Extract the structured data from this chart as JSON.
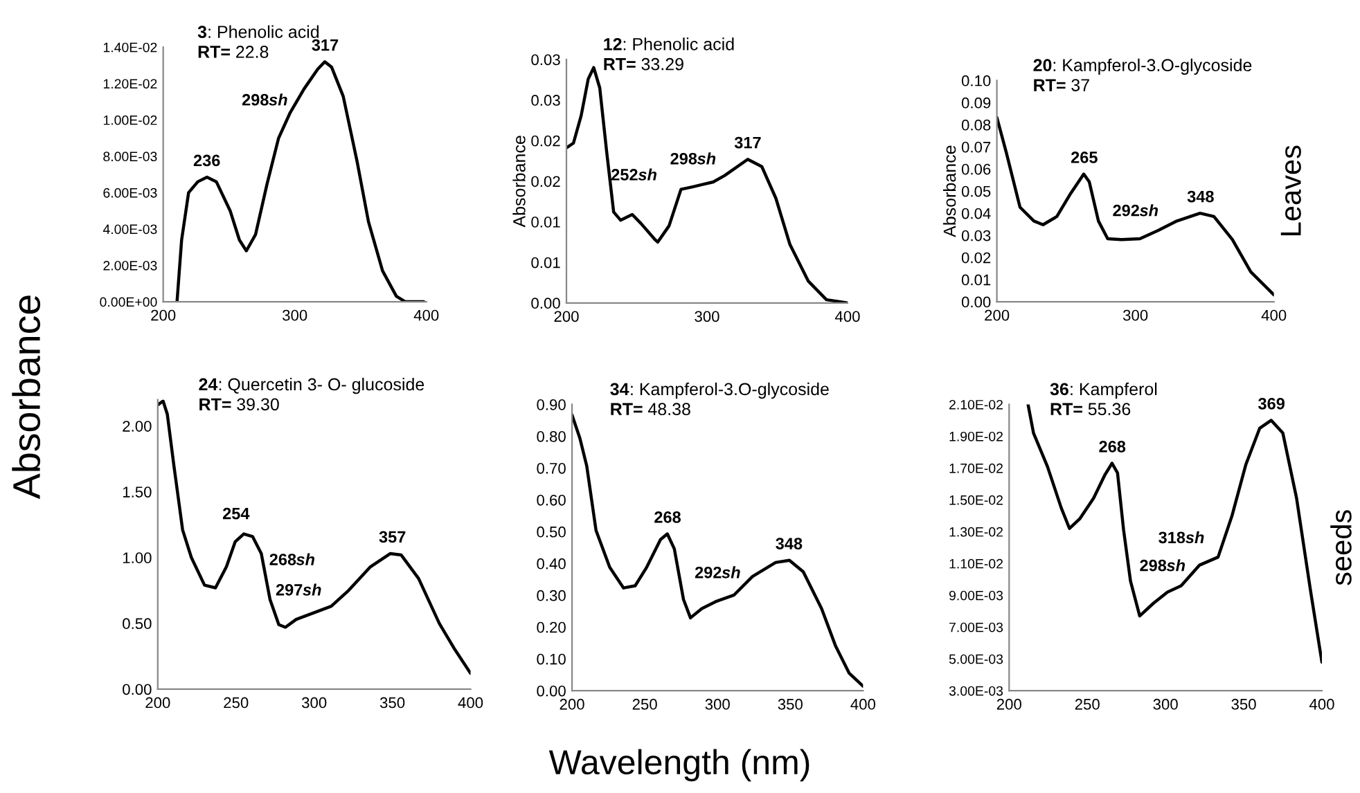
{
  "chart_data": [
    {
      "type": "line",
      "title": "3: Phenolic acid",
      "subtitle": "RT= 22.8",
      "annotations": [
        "Absorbance",
        "Wavelength (nm)",
        {
          "text": "236",
          "x": 233,
          "y": 0.00685
        },
        {
          "text": "298sh",
          "x": 296,
          "y": 0.0104
        },
        {
          "text": "317",
          "x": 323,
          "y": 0.0132
        }
      ],
      "series": [
        {
          "color": "#000000",
          "x": [
            210.5,
            214,
            219.3,
            226.3,
            233.3,
            240.4,
            250.9,
            257.9,
            263.2,
            270.2,
            279,
            287.7,
            296.5,
            307,
            317.5,
            322.8,
            328,
            336.8,
            347.4,
            356,
            366.7,
            377.2,
            384,
            398
          ],
          "values": [
            0,
            0.0034,
            0.006,
            0.0066,
            0.00685,
            0.0066,
            0.005,
            0.0034,
            0.0028,
            0.0037,
            0.0065,
            0.009,
            0.0104,
            0.0117,
            0.0128,
            0.0132,
            0.0129,
            0.0113,
            0.0077,
            0.0044,
            0.0017,
            0.0003,
            0,
            0
          ]
        }
      ],
      "xlim": [
        200,
        400
      ],
      "xticks": [
        200,
        300,
        400
      ],
      "ylim": [
        0,
        0.014
      ],
      "yticks": [
        {
          "value": 0,
          "label": "0.00E+00"
        },
        {
          "value": 0.002,
          "label": "2.00E-03"
        },
        {
          "value": 0.004,
          "label": "4.00E-03"
        },
        {
          "value": 0.006,
          "label": "6.00E-03"
        },
        {
          "value": 0.008,
          "label": "8.00E-03"
        },
        {
          "value": 0.01,
          "label": "1.00E-02"
        },
        {
          "value": 0.012,
          "label": "1.20E-02"
        },
        {
          "value": 0.014,
          "label": "1.40E-02"
        }
      ]
    },
    {
      "type": "line",
      "title": "12: Phenolic acid",
      "subtitle": "RT= 33.29",
      "ylabel": "Absorbance",
      "annotations": [
        {
          "text": "252sh",
          "x": 248,
          "y": 0.0109
        },
        {
          "text": "298sh",
          "x": 290,
          "y": 0.0143
        },
        {
          "text": "317",
          "x": 329,
          "y": 0.0177
        }
      ],
      "series": [
        {
          "color": "#000000",
          "x": [
            200,
            205,
            210.5,
            215.5,
            219.4,
            223.7,
            228.7,
            233.6,
            238.5,
            246.8,
            253,
            263,
            265,
            273,
            281.5,
            289.6,
            304.4,
            312.6,
            329,
            339,
            349,
            359,
            372,
            385,
            400
          ],
          "values": [
            0.0191,
            0.0197,
            0.0231,
            0.0276,
            0.029,
            0.0265,
            0.0185,
            0.0112,
            0.0102,
            0.0109,
            0.0098,
            0.0078,
            0.0075,
            0.0095,
            0.014,
            0.0143,
            0.0149,
            0.0157,
            0.0177,
            0.0168,
            0.0129,
            0.0072,
            0.0027,
            0.0004,
            0
          ]
        }
      ],
      "xlim": [
        200,
        400
      ],
      "xticks": [
        200,
        300,
        400
      ],
      "ylim": [
        0,
        0.03
      ],
      "yticks": [
        {
          "value": 0,
          "label": "0.00"
        },
        {
          "value": 0.005,
          "label": "0.01"
        },
        {
          "value": 0.01,
          "label": "0.01"
        },
        {
          "value": 0.015,
          "label": "0.02"
        },
        {
          "value": 0.02,
          "label": "0.02"
        },
        {
          "value": 0.025,
          "label": "0.03"
        },
        {
          "value": 0.03,
          "label": "0.03"
        }
      ]
    },
    {
      "type": "line",
      "title": "20: Kampferol-3.O-glycoside",
      "subtitle": "RT= 37",
      "ylabel": "Absorbance",
      "annotations": [
        "Leaves",
        {
          "text": "265",
          "x": 263,
          "y": 0.0577
        },
        {
          "text": "292sh",
          "x": 300,
          "y": 0.0285
        },
        {
          "text": "348",
          "x": 347,
          "y": 0.04
        }
      ],
      "series": [
        {
          "color": "#000000",
          "x": [
            200,
            206.7,
            216.7,
            226.7,
            233.3,
            243.3,
            253.3,
            262.7,
            266.7,
            273.3,
            280,
            290,
            303.3,
            316.7,
            330,
            346.7,
            356.7,
            370,
            383.3,
            400
          ],
          "values": [
            0.0833,
            0.0677,
            0.0427,
            0.0365,
            0.0348,
            0.0385,
            0.049,
            0.0577,
            0.0542,
            0.0365,
            0.0285,
            0.0281,
            0.0285,
            0.0323,
            0.0365,
            0.04,
            0.0385,
            0.0281,
            0.0135,
            0.0031
          ]
        }
      ],
      "xlim": [
        200,
        400
      ],
      "xticks": [
        200,
        300,
        400
      ],
      "ylim": [
        0,
        0.1
      ],
      "yticks": [
        {
          "value": 0,
          "label": "0.00"
        },
        {
          "value": 0.01,
          "label": "0.01"
        },
        {
          "value": 0.02,
          "label": "0.02"
        },
        {
          "value": 0.03,
          "label": "0.03"
        },
        {
          "value": 0.04,
          "label": "0.04"
        },
        {
          "value": 0.05,
          "label": "0.05"
        },
        {
          "value": 0.06,
          "label": "0.06"
        },
        {
          "value": 0.07,
          "label": "0.07"
        },
        {
          "value": 0.08,
          "label": "0.08"
        },
        {
          "value": 0.09,
          "label": "0.09"
        },
        {
          "value": 0.1,
          "label": "0.10"
        }
      ]
    },
    {
      "type": "line",
      "title": "24: Quercetin 3- O- glucoside",
      "subtitle": "RT= 39.30",
      "annotations": [
        {
          "text": "254",
          "x": 250,
          "y": 1.12
        },
        {
          "text": "268sh",
          "x": 270,
          "y": 0.8
        },
        {
          "text": "297sh",
          "x": 290,
          "y": 0.54
        },
        {
          "text": "357",
          "x": 350,
          "y": 1.03
        }
      ],
      "series": [
        {
          "color": "#000000",
          "x": [
            200,
            203.4,
            206.1,
            210.3,
            215.9,
            221.5,
            229.9,
            236.9,
            243.9,
            249.5,
            255,
            260.6,
            266.2,
            271.8,
            277.4,
            281.6,
            288.5,
            299.7,
            310.9,
            322,
            336,
            348.6,
            355.6,
            366.8,
            380,
            390,
            400
          ],
          "values": [
            2.16,
            2.19,
            2.09,
            1.7,
            1.21,
            1.0,
            0.79,
            0.77,
            0.93,
            1.12,
            1.18,
            1.16,
            1.03,
            0.68,
            0.49,
            0.47,
            0.53,
            0.58,
            0.63,
            0.75,
            0.93,
            1.03,
            1.02,
            0.84,
            0.5,
            0.3,
            0.12
          ]
        }
      ],
      "xlim": [
        200,
        400
      ],
      "xticks": [
        200,
        250,
        300,
        350,
        400
      ],
      "ylim": [
        0,
        2.2
      ],
      "yticks": [
        {
          "value": 0,
          "label": "0.00"
        },
        {
          "value": 0.5,
          "label": "0.50"
        },
        {
          "value": 1,
          "label": "1.00"
        },
        {
          "value": 1.5,
          "label": "1.50"
        },
        {
          "value": 2,
          "label": "2.00"
        }
      ]
    },
    {
      "type": "line",
      "title": "34: Kampferol-3.O-glycoside",
      "subtitle": "RT= 48.38",
      "annotations": [
        {
          "text": "268",
          "x": 265.5,
          "y": 0.493
        },
        {
          "text": "292sh",
          "x": 300,
          "y": 0.283
        },
        {
          "text": "348",
          "x": 349,
          "y": 0.41
        }
      ],
      "series": [
        {
          "color": "#000000",
          "x": [
            200,
            205.4,
            210.1,
            216.5,
            225.9,
            235.4,
            243.4,
            251.3,
            260.8,
            265.5,
            270.3,
            276.6,
            281.4,
            289.2,
            298.7,
            311.4,
            324,
            339.9,
            349.4,
            358.9,
            371.5,
            381,
            390.5,
            400
          ],
          "values": [
            0.867,
            0.794,
            0.707,
            0.504,
            0.388,
            0.323,
            0.33,
            0.388,
            0.475,
            0.493,
            0.446,
            0.287,
            0.229,
            0.258,
            0.28,
            0.301,
            0.359,
            0.403,
            0.41,
            0.374,
            0.258,
            0.142,
            0.055,
            0.014
          ]
        }
      ],
      "xlim": [
        200,
        400
      ],
      "xticks": [
        200,
        250,
        300,
        350,
        400
      ],
      "ylim": [
        0,
        0.9
      ],
      "yticks": [
        {
          "value": 0,
          "label": "0.00"
        },
        {
          "value": 0.1,
          "label": "0.10"
        },
        {
          "value": 0.2,
          "label": "0.20"
        },
        {
          "value": 0.3,
          "label": "0.30"
        },
        {
          "value": 0.4,
          "label": "0.40"
        },
        {
          "value": 0.5,
          "label": "0.50"
        },
        {
          "value": 0.6,
          "label": "0.60"
        },
        {
          "value": 0.7,
          "label": "0.70"
        },
        {
          "value": 0.8,
          "label": "0.80"
        },
        {
          "value": 0.9,
          "label": "0.90"
        }
      ]
    },
    {
      "type": "line",
      "title": "36: Kampferol",
      "subtitle": "RT= 55.36",
      "annotations": [
        "seeds",
        {
          "text": "268",
          "x": 265.8,
          "y": 0.0173
        },
        {
          "text": "298sh",
          "x": 298,
          "y": 0.0091
        },
        {
          "text": "318sh",
          "x": 326,
          "y": 0.0111
        },
        {
          "text": "369",
          "x": 367.6,
          "y": 0.02
        }
      ],
      "series": [
        {
          "color": "#000000",
          "x": [
            212.1,
            215.6,
            224.5,
            233.3,
            238.6,
            245.1,
            254,
            261.4,
            265.8,
            269.3,
            273.2,
            277.6,
            283.5,
            292.3,
            301.2,
            310,
            321.8,
            333.6,
            342.5,
            351.3,
            360.2,
            367.6,
            375,
            383.8,
            392.7,
            400
          ],
          "values": [
            0.021,
            0.0192,
            0.0171,
            0.0145,
            0.0132,
            0.0138,
            0.0151,
            0.0166,
            0.0173,
            0.0167,
            0.0131,
            0.0099,
            0.0077,
            0.0085,
            0.0092,
            0.0096,
            0.0109,
            0.0114,
            0.014,
            0.0172,
            0.0195,
            0.02,
            0.0192,
            0.0151,
            0.0093,
            0.0048
          ]
        }
      ],
      "xlim": [
        200,
        400
      ],
      "xticks": [
        200,
        250,
        300,
        350,
        400
      ],
      "ylim": [
        0.003,
        0.021
      ],
      "yticks": [
        {
          "value": 0.003,
          "label": "3.00E-03"
        },
        {
          "value": 0.005,
          "label": "5.00E-03"
        },
        {
          "value": 0.007,
          "label": "7.00E-03"
        },
        {
          "value": 0.009,
          "label": "9.00E-03"
        },
        {
          "value": 0.011,
          "label": "1.10E-02"
        },
        {
          "value": 0.013,
          "label": "1.30E-02"
        },
        {
          "value": 0.015,
          "label": "1.50E-02"
        },
        {
          "value": 0.017,
          "label": "1.70E-02"
        },
        {
          "value": 0.019,
          "label": "1.90E-02"
        },
        {
          "value": 0.021,
          "label": "2.10E-02"
        }
      ]
    }
  ]
}
